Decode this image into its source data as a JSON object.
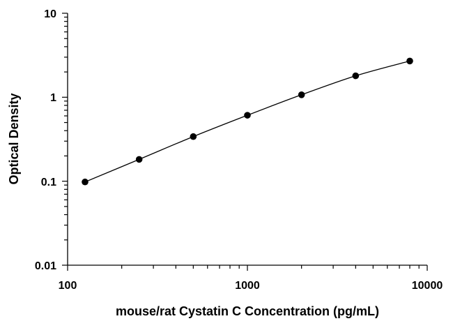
{
  "chart_data": {
    "type": "scatter",
    "title": "",
    "xlabel": "mouse/rat Cystatin C Concentration (pg/mL)",
    "ylabel": "Optical Density",
    "xscale": "log",
    "yscale": "log",
    "xlim": [
      100,
      10000
    ],
    "ylim": [
      0.01,
      10
    ],
    "x_ticks": [
      "100",
      "1000",
      "10000"
    ],
    "y_ticks": [
      "0.01",
      "0.1",
      "1",
      "10"
    ],
    "grid": false,
    "legend": "none",
    "marker_color": "#000000",
    "line_color": "#000000",
    "series": [
      {
        "x": [
          125,
          250,
          500,
          1000,
          2000,
          4000,
          8000
        ],
        "y": [
          0.098,
          0.182,
          0.34,
          0.61,
          1.07,
          1.8,
          2.7
        ]
      }
    ],
    "fit_curve": "smooth curve through points"
  }
}
